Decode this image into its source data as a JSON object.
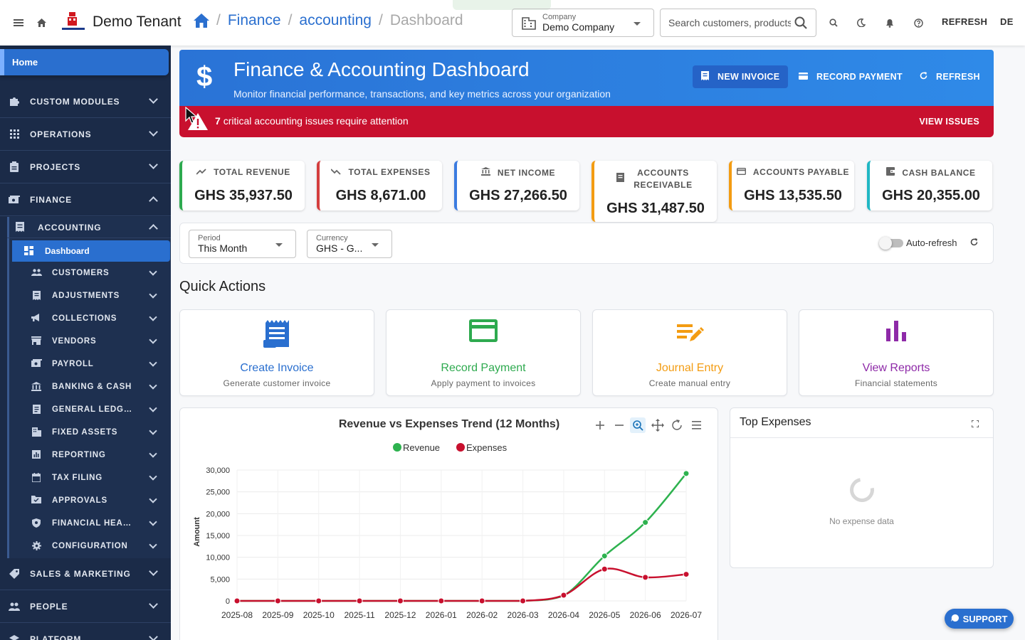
{
  "topbar": {
    "tenant_name": "Demo Tenant",
    "breadcrumb": [
      "Finance",
      "accounting",
      "Dashboard"
    ],
    "company_label": "Company",
    "company_value": "Demo Company",
    "search_placeholder": "Search customers, products...",
    "refresh_label": "REFRESH",
    "lang_label": "DE",
    "icons": [
      "menu-icon",
      "home-icon",
      "search-icon",
      "moon-icon",
      "bell-icon",
      "help-icon"
    ]
  },
  "sidebar": {
    "home": "Home",
    "top_items": [
      {
        "label": "CUSTOM MODULES",
        "icon": "puzzle-icon",
        "expanded": false
      },
      {
        "label": "OPERATIONS",
        "icon": "grid-icon",
        "expanded": false
      },
      {
        "label": "PROJECTS",
        "icon": "clipboard-icon",
        "expanded": false
      },
      {
        "label": "FINANCE",
        "icon": "money-icon",
        "expanded": true
      }
    ],
    "accounting": {
      "label": "ACCOUNTING",
      "expanded": true
    },
    "active_item": "Dashboard",
    "accounting_items": [
      {
        "label": "CUSTOMERS",
        "icon": "people-icon"
      },
      {
        "label": "ADJUSTMENTS",
        "icon": "receipt-icon"
      },
      {
        "label": "COLLECTIONS",
        "icon": "megaphone-icon"
      },
      {
        "label": "VENDORS",
        "icon": "store-icon"
      },
      {
        "label": "PAYROLL",
        "icon": "cash-icon"
      },
      {
        "label": "BANKING & CASH",
        "icon": "bank-icon"
      },
      {
        "label": "GENERAL LEDGER",
        "icon": "ledger-icon"
      },
      {
        "label": "FIXED ASSETS",
        "icon": "building-icon"
      },
      {
        "label": "REPORTING",
        "icon": "chart-icon"
      },
      {
        "label": "TAX FILING",
        "icon": "calendar-icon"
      },
      {
        "label": "APPROVALS",
        "icon": "folder-check-icon"
      },
      {
        "label": "FINANCIAL HEALTH",
        "icon": "shield-icon"
      },
      {
        "label": "CONFIGURATION",
        "icon": "gear-icon"
      }
    ],
    "bottom_items": [
      {
        "label": "SALES & MARKETING",
        "icon": "tag-icon"
      },
      {
        "label": "PEOPLE",
        "icon": "people-icon"
      },
      {
        "label": "PLATFORM",
        "icon": "layers-icon"
      }
    ]
  },
  "banner": {
    "title": "Finance & Accounting Dashboard",
    "subtitle": "Monitor financial performance, transactions, and key metrics across your organization",
    "new_invoice": "NEW INVOICE",
    "record_payment": "RECORD PAYMENT",
    "refresh": "REFRESH",
    "color": "#2a73d6"
  },
  "alert": {
    "count": "7",
    "message": "critical accounting issues require attention",
    "action": "VIEW ISSUES",
    "color": "#c8102e"
  },
  "kpis": [
    {
      "label": "TOTAL REVENUE",
      "value": "GHS 35,937.50",
      "icon": "trending-up-icon",
      "color": "#2eaa4f"
    },
    {
      "label": "TOTAL EXPENSES",
      "value": "GHS 8,671.00",
      "icon": "trending-down-icon",
      "color": "#d43e3e"
    },
    {
      "label": "NET INCOME",
      "value": "GHS 27,266.50",
      "icon": "bank-icon",
      "color": "#3b7be0"
    },
    {
      "label": "ACCOUNTS RECEIVABLE",
      "value": "GHS 31,487.50",
      "icon": "receipt-icon",
      "color": "#f39c12"
    },
    {
      "label": "ACCOUNTS PAYABLE",
      "value": "GHS 13,535.50",
      "icon": "card-icon",
      "color": "#f39c12"
    },
    {
      "label": "CASH BALANCE",
      "value": "GHS 20,355.00",
      "icon": "wallet-icon",
      "color": "#20b7c4"
    }
  ],
  "filters": {
    "period_label": "Period",
    "period_value": "This Month",
    "currency_label": "Currency",
    "currency_value": "GHS - G...",
    "auto_refresh_label": "Auto-refresh",
    "auto_refresh_on": false
  },
  "quick_actions": {
    "title": "Quick Actions",
    "items": [
      {
        "title": "Create Invoice",
        "subtitle": "Generate customer invoice",
        "icon": "invoice-icon",
        "color": "#2a6fcf"
      },
      {
        "title": "Record Payment",
        "subtitle": "Apply payment to invoices",
        "icon": "credit-card-icon",
        "color": "#2eaa4f"
      },
      {
        "title": "Journal Entry",
        "subtitle": "Create manual entry",
        "icon": "edit-list-icon",
        "color": "#f39c12"
      },
      {
        "title": "View Reports",
        "subtitle": "Financial statements",
        "icon": "bar-chart-icon",
        "color": "#8e2aa8"
      }
    ]
  },
  "chart_data": {
    "type": "line",
    "title": "Revenue vs Expenses Trend (12 Months)",
    "ylabel": "Amount",
    "xlabel": "",
    "categories": [
      "2025-08",
      "2025-09",
      "2025-10",
      "2025-11",
      "2025-12",
      "2026-01",
      "2026-02",
      "2026-03",
      "2026-04",
      "2026-05",
      "2026-06",
      "2026-07"
    ],
    "series": [
      {
        "name": "Revenue",
        "color": "#2eb24f",
        "values": [
          0,
          0,
          0,
          0,
          0,
          0,
          0,
          0,
          1200,
          10300,
          18000,
          29200
        ]
      },
      {
        "name": "Expenses",
        "color": "#c8102e",
        "values": [
          0,
          0,
          0,
          0,
          0,
          0,
          0,
          0,
          1300,
          7300,
          5400,
          6100
        ]
      }
    ],
    "ylim": [
      0,
      30000
    ],
    "yticks": [
      "0",
      "5,000",
      "10,000",
      "15,000",
      "20,000",
      "25,000",
      "30,000"
    ],
    "legend": "top-center",
    "grid": true
  },
  "top_expenses": {
    "title": "Top Expenses",
    "empty_text": "No expense data"
  },
  "support_label": "SUPPORT"
}
